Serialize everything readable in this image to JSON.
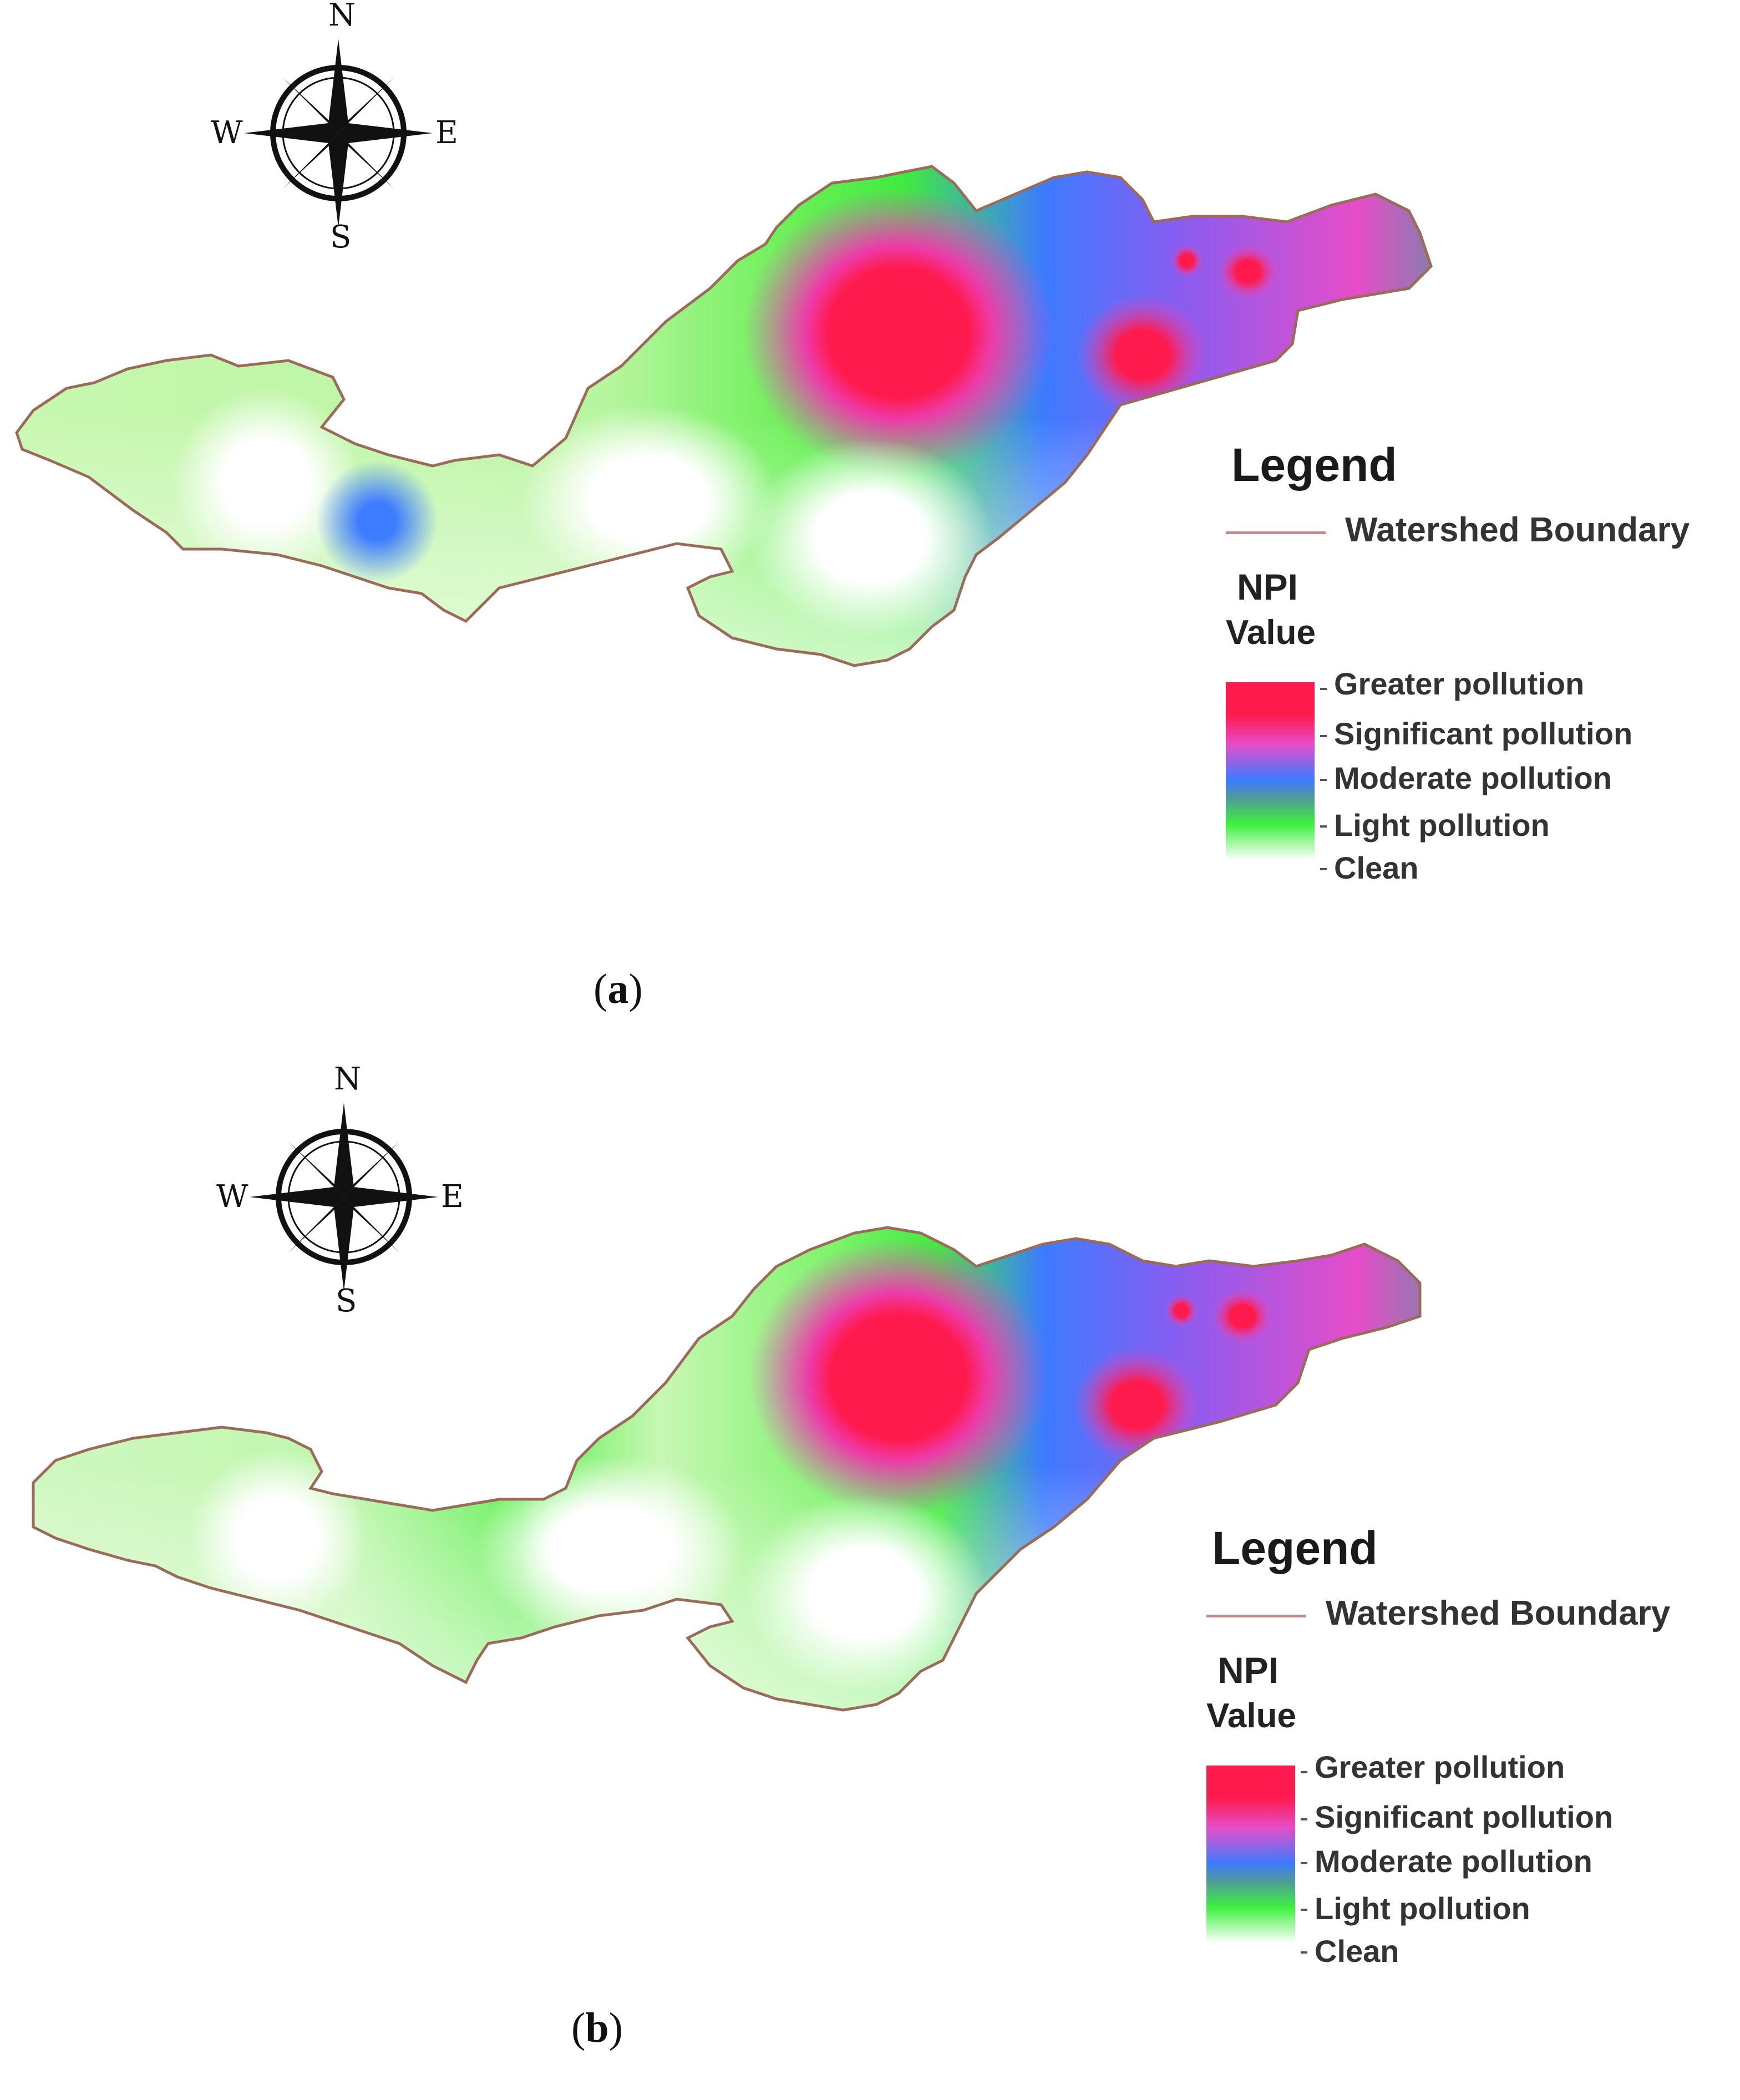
{
  "panels": [
    {
      "id": "a",
      "caption_letter": "a",
      "compass": {
        "north": "N",
        "south": "S",
        "east": "E",
        "west": "W"
      },
      "legend": {
        "title": "Legend",
        "boundary_label": "Watershed Boundary",
        "npi_label": "NPI",
        "value_label": "Value",
        "classes": [
          "Greater pollution",
          "Significant pollution",
          "Moderate pollution",
          "Light pollution",
          "Clean"
        ]
      }
    },
    {
      "id": "b",
      "caption_letter": "b",
      "compass": {
        "north": "N",
        "south": "S",
        "east": "E",
        "west": "W"
      },
      "legend": {
        "title": "Legend",
        "boundary_label": "Watershed Boundary",
        "npi_label": "NPI",
        "value_label": "Value",
        "classes": [
          "Greater pollution",
          "Significant pollution",
          "Moderate pollution",
          "Light pollution",
          "Clean"
        ]
      }
    }
  ],
  "colors": {
    "greater": "#ff1a4d",
    "significant": "#e64dc8",
    "moderate": "#3d7bff",
    "light": "#3ef03e",
    "clean": "#ffffff",
    "teal": "#4f9a9a",
    "boundary": "#9b6b5a"
  }
}
